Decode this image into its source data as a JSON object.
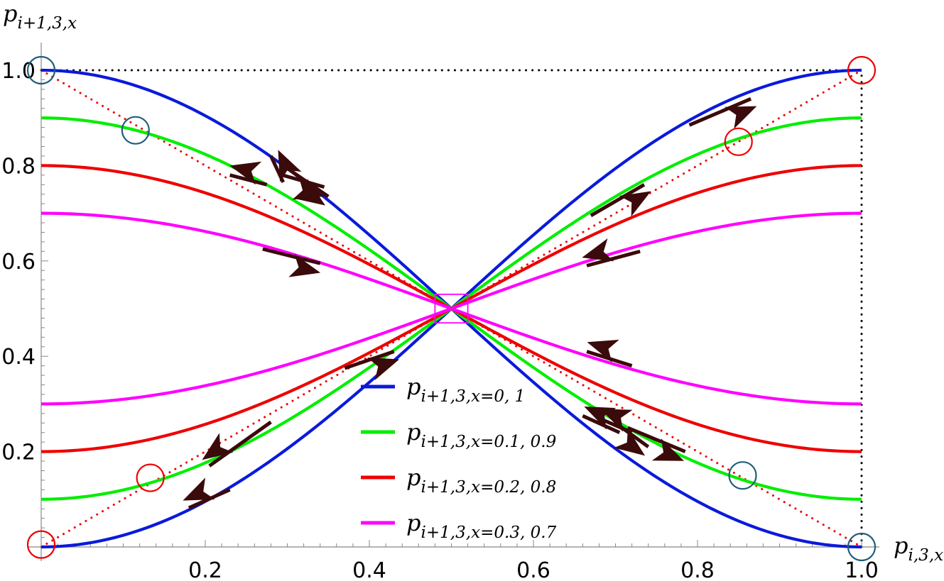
{
  "chart_data": {
    "type": "line",
    "title": "",
    "xlabel": {
      "base": "p",
      "sub": "i,3,x"
    },
    "ylabel": {
      "base": "p",
      "sub": "i+1,3,x"
    },
    "xlim": [
      0,
      1
    ],
    "ylim": [
      0,
      1
    ],
    "x_ticks": [
      0.2,
      0.4,
      0.6,
      0.8,
      1.0
    ],
    "x_tick_labels": [
      "0.2",
      "0.4",
      "0.6",
      "0.8",
      "1.0"
    ],
    "y_ticks": [
      0.2,
      0.4,
      0.6,
      0.8,
      1.0
    ],
    "y_tick_labels": [
      "0.2",
      "0.4",
      "0.6",
      "0.8",
      "1.0"
    ],
    "grid": false,
    "legend_position": "bottom-center",
    "series": [
      {
        "name": "x=0, 1",
        "legend_base": "p",
        "legend_sub": "i+1,3,x=0, 1",
        "x_param": 0.0,
        "color": "#0a1adb"
      },
      {
        "name": "x=0.1, 0.9",
        "legend_base": "p",
        "legend_sub": "i+1,3,x=0.1, 0.9",
        "x_param": 0.1,
        "color": "#00ee00"
      },
      {
        "name": "x=0.2, 0.8",
        "legend_base": "p",
        "legend_sub": "i+1,3,x=0.2, 0.8",
        "x_param": 0.2,
        "color": "#ee0000"
      },
      {
        "name": "x=0.3, 0.7",
        "legend_base": "p",
        "legend_sub": "i+1,3,x=0.3, 0.7",
        "x_param": 0.3,
        "color": "#ff00ff"
      }
    ],
    "reference_lines": [
      {
        "type": "dotted",
        "color": "#ee0000",
        "points": [
          [
            0,
            0
          ],
          [
            1,
            1
          ]
        ]
      },
      {
        "type": "dotted",
        "color": "#ee0000",
        "points": [
          [
            0,
            1
          ],
          [
            1,
            0
          ]
        ]
      },
      {
        "type": "dotted",
        "color": "#000000",
        "points": [
          [
            0,
            1
          ],
          [
            1,
            1
          ]
        ]
      },
      {
        "type": "dotted",
        "color": "#000000",
        "points": [
          [
            1,
            0
          ],
          [
            1,
            1
          ]
        ]
      }
    ],
    "center_box": {
      "x": [
        0.48,
        0.52
      ],
      "y": [
        0.47,
        0.53
      ],
      "color": "#ff00ff"
    },
    "circles": [
      {
        "x": 0.0,
        "y": 1.0,
        "color": "#1f5f7a"
      },
      {
        "x": 0.115,
        "y": 0.874,
        "color": "#1f5f7a"
      },
      {
        "x": 0.855,
        "y": 0.15,
        "color": "#1f5f7a"
      },
      {
        "x": 1.0,
        "y": 0.0,
        "color": "#1f5f7a"
      },
      {
        "x": 1.0,
        "y": 1.0,
        "color": "#ee0000"
      },
      {
        "x": 0.85,
        "y": 0.85,
        "color": "#ee0000"
      },
      {
        "x": 0.133,
        "y": 0.145,
        "color": "#ee0000"
      },
      {
        "x": 0.0,
        "y": 0.005,
        "color": "#ee0000"
      }
    ],
    "arrows": [
      {
        "from": [
          0.79,
          0.885
        ],
        "to": [
          0.865,
          0.94
        ]
      },
      {
        "from": [
          0.67,
          0.695
        ],
        "to": [
          0.735,
          0.76
        ]
      },
      {
        "from": [
          0.73,
          0.62
        ],
        "to": [
          0.665,
          0.59
        ]
      },
      {
        "from": [
          0.28,
          0.262
        ],
        "to": [
          0.205,
          0.17
        ]
      },
      {
        "from": [
          0.23,
          0.12
        ],
        "to": [
          0.18,
          0.082
        ]
      },
      {
        "from": [
          0.37,
          0.375
        ],
        "to": [
          0.43,
          0.41
        ]
      },
      {
        "from": [
          0.27,
          0.625
        ],
        "to": [
          0.34,
          0.595
        ]
      },
      {
        "from": [
          0.275,
          0.76
        ],
        "to": [
          0.23,
          0.78
        ]
      },
      {
        "from": [
          0.29,
          0.782
        ],
        "to": [
          0.345,
          0.755
        ]
      },
      {
        "from": [
          0.295,
          0.765
        ],
        "to": [
          0.28,
          0.82
        ]
      },
      {
        "from": [
          0.295,
          0.8
        ],
        "to": [
          0.35,
          0.735
        ]
      },
      {
        "from": [
          0.72,
          0.38
        ],
        "to": [
          0.665,
          0.41
        ]
      },
      {
        "from": [
          0.705,
          0.24
        ],
        "to": [
          0.66,
          0.275
        ]
      },
      {
        "from": [
          0.7,
          0.26
        ],
        "to": [
          0.74,
          0.21
        ]
      },
      {
        "from": [
          0.715,
          0.25
        ],
        "to": [
          0.785,
          0.2
        ]
      },
      {
        "from": [
          0.72,
          0.24
        ],
        "to": [
          0.68,
          0.27
        ]
      }
    ]
  }
}
